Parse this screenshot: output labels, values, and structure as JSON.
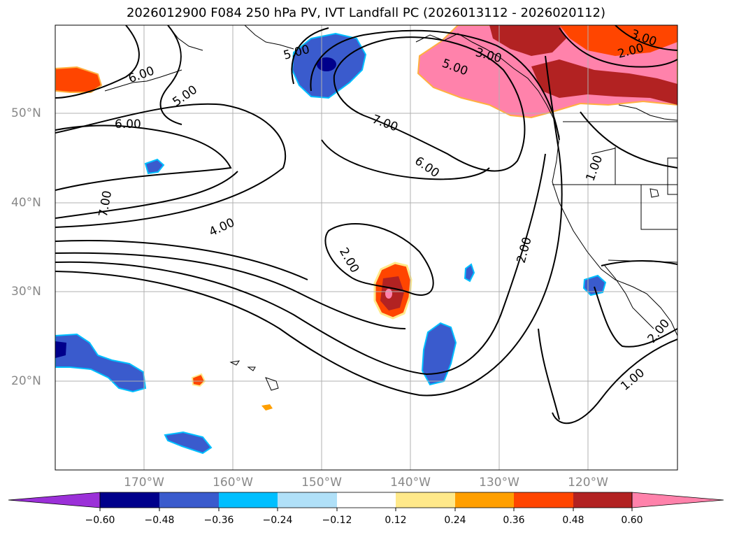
{
  "title": "2026012900 F084 250 hPa PV, IVT Landfall PC (2026013112 - 2026020112)",
  "lat_labels": [
    "50°N",
    "40°N",
    "30°N",
    "20°N"
  ],
  "lon_labels": [
    "170°W",
    "160°W",
    "150°W",
    "140°W",
    "130°W",
    "120°W"
  ],
  "contour_labels": [
    "6.00",
    "5.00",
    "5.00",
    "3.00",
    "5.00",
    "3.00",
    "2.00",
    "6.00",
    "7.00",
    "7.00",
    "6.00",
    "4.00",
    "2.00",
    "2.00",
    "1.00",
    "2.00",
    "1.00"
  ],
  "colorbar": {
    "ticks": [
      "−0.60",
      "−0.48",
      "−0.36",
      "−0.24",
      "−0.12",
      "0.12",
      "0.24",
      "0.36",
      "0.48",
      "0.60"
    ],
    "colors": [
      "#9b30d8",
      "#00008b",
      "#3a5bcd",
      "#00bfff",
      "#b0e0f8",
      "#ffffff",
      "#ffe98a",
      "#ff9f00",
      "#ff4500",
      "#b22222",
      "#ff82ab"
    ]
  },
  "colors": {
    "neg_strong": "#00008b",
    "neg": "#3a5bcd",
    "neg_light": "#00bfff",
    "pos_light": "#ffe98a",
    "pos_mid": "#ff9f00",
    "pos": "#ff4500",
    "pos_dark": "#b22222",
    "pos_strong": "#ff82ab"
  }
}
